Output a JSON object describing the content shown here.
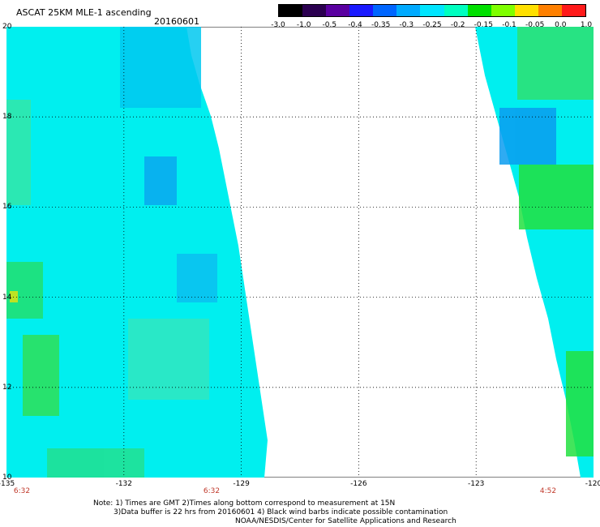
{
  "header": {
    "title": "ASCAT 25KM MLE-1 ascending",
    "date": "20160601"
  },
  "colorbar": {
    "labels": [
      "-3.0",
      "-1.0",
      "-0.5",
      "-0.4",
      "-0.35",
      "-0.3",
      "-0.25",
      "-0.2",
      "-0.15",
      "-0.1",
      "-0.05",
      "0.0",
      "1.0"
    ],
    "colors": [
      "#000000",
      "#2b0050",
      "#5a00a0",
      "#1a1aff",
      "#0066ff",
      "#00aaff",
      "#00e5ff",
      "#00ffc0",
      "#00e000",
      "#7fff00",
      "#ffe000",
      "#ff8000",
      "#ff1a1a"
    ]
  },
  "axes": {
    "x_ticks": [
      "-135",
      "-132",
      "-129",
      "-126",
      "-123",
      "-120"
    ],
    "x_tick_lons": [
      -135,
      -132,
      -129,
      -126,
      -123,
      -120
    ],
    "y_ticks": [
      "20",
      "18",
      "16",
      "14",
      "12",
      "10"
    ],
    "y_tick_lats": [
      20,
      18,
      16,
      14,
      12,
      10
    ],
    "lon_range": [
      -135,
      -120
    ],
    "lat_range": [
      10,
      20
    ],
    "grid": true,
    "grid_style": "dotted"
  },
  "times": [
    "6:32",
    "6:32",
    "4:52"
  ],
  "notes": [
    "Note: 1) Times are GMT 2)Times along bottom correspond to measurement at 15N",
    "3)Data buffer is 22 hrs from 20160601 4) Black wind barbs indicate possible contamination",
    "NOAA/NESDIS/Center for Satellite Applications and Research"
  ],
  "swaths": {
    "west_color": "#00f0f0",
    "east_color": "#00f0f0"
  }
}
